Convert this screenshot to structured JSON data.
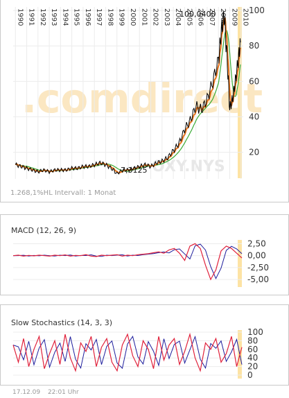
{
  "watermark": ".comdirect",
  "main_chart": {
    "symbol_label": "OXY.NYS",
    "max_label": "100,0400",
    "min_label": "7,3125",
    "info_text": "1.268,1%HL Intervall: 1 Monat",
    "years": [
      "1990",
      "1991",
      "1992",
      "1993",
      "1994",
      "1995",
      "1996",
      "1997",
      "1998",
      "1999",
      "2000",
      "2001",
      "2002",
      "2003",
      "2004",
      "2005",
      "2006",
      "2007",
      "2008",
      "2009",
      "2010"
    ],
    "y_ticks": [
      "100",
      "80",
      "60",
      "40",
      "20"
    ],
    "colors": {
      "price": "#000000",
      "ma_short": "#e8741a",
      "ma_long": "#3aaa35",
      "highlight": "#fde3a4"
    }
  },
  "macd_panel": {
    "title": "MACD (12, 26, 9)",
    "y_ticks": [
      "2,50",
      "0,00",
      "-2,50",
      "-5,00"
    ],
    "colors": {
      "macd": "#1c1c9c",
      "signal": "#e0203a"
    }
  },
  "stoch_panel": {
    "title": "Slow Stochastics (14, 3, 3)",
    "y_ticks": [
      "100",
      "80",
      "60",
      "40",
      "20",
      "0"
    ],
    "colors": {
      "k": "#1c1c9c",
      "d": "#e0203a"
    }
  },
  "footer": {
    "date": "17.12.09",
    "time": "22:01 Uhr"
  },
  "chart_data": [
    {
      "type": "line",
      "title": "",
      "series": [
        {
          "name": "",
          "x": [
            1990.0,
            1990.5,
            1991.0,
            1991.5,
            1992.0,
            1992.5,
            1993.0,
            1993.5,
            1994.0,
            1994.5,
            1995.0,
            1995.5,
            1996.0,
            1996.5,
            1997.0,
            1997.5,
            1998.0,
            1998.5,
            1999.0,
            1999.5,
            2000.0,
            2000.5,
            2001.0,
            2001.5,
            2002.0,
            2002.5,
            2003.0,
            2003.5,
            2004.0,
            2004.5,
            2005.0,
            2005.5,
            2006.0,
            2006.5,
            2007.0,
            2007.5,
            2008.0,
            2008.25,
            2008.5,
            2008.75,
            2009.0,
            2009.25,
            2009.5,
            2009.75,
            2009.95
          ],
          "values": [
            13,
            12,
            11,
            10,
            9,
            10,
            9,
            10,
            10,
            10,
            11,
            11,
            12,
            12,
            13,
            14,
            13,
            11,
            8,
            10,
            10,
            11,
            12,
            13,
            12,
            14,
            15,
            17,
            21,
            25,
            33,
            38,
            46,
            44,
            50,
            60,
            72,
            88,
            98,
            75,
            45,
            50,
            60,
            72,
            82
          ]
        }
      ],
      "ylim": [
        5,
        102
      ],
      "xlim": [
        1989.8,
        2010.2
      ]
    },
    {
      "type": "line",
      "title": "MACD (12, 26, 9)",
      "ylim": [
        -6,
        3
      ],
      "series": [
        {
          "name": "",
          "values": [
            0.0,
            0.1,
            -0.1,
            0.05,
            -0.05,
            0.1,
            0.0,
            -0.1,
            0.1,
            0.0,
            0.15,
            -0.1,
            0.05,
            0.0,
            0.2,
            -0.1,
            -0.2,
            0.1,
            0.0,
            0.1,
            0.2,
            -0.1,
            0.1,
            0.0,
            0.2,
            0.3,
            0.4,
            0.6,
            0.8,
            0.5,
            1.2,
            1.5,
            0.5,
            -1.0,
            2.0,
            2.5,
            1.5,
            -2.0,
            -5.0,
            -3.0,
            1.0,
            2.0,
            1.5,
            0.5,
            -0.5
          ]
        }
      ]
    },
    {
      "type": "line",
      "title": "Slow Stochastics (14, 3, 3)",
      "ylim": [
        0,
        100
      ],
      "series": [
        {
          "name": "",
          "values": [
            70,
            30,
            85,
            20,
            60,
            90,
            15,
            50,
            80,
            25,
            95,
            40,
            10,
            75,
            55,
            90,
            20,
            65,
            85,
            30,
            10,
            70,
            95,
            45,
            20,
            80,
            60,
            15,
            90,
            35,
            70,
            85,
            25,
            55,
            95,
            40,
            10,
            75,
            60,
            85,
            30,
            50,
            90,
            20,
            65
          ]
        }
      ]
    }
  ]
}
